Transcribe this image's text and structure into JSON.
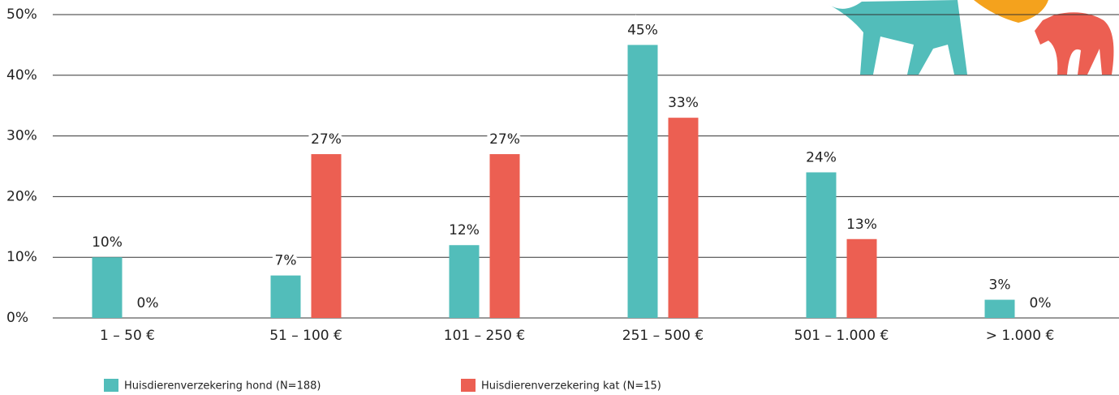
{
  "chart_data": {
    "type": "bar",
    "categories": [
      "1 – 50 €",
      "51 – 100 €",
      "101 – 250 €",
      "251 – 500 €",
      "501 – 1.000 €",
      "> 1.000 €"
    ],
    "series": [
      {
        "name": "Huisdierenverzekering hond (N=188)",
        "color": "#52bdba",
        "values": [
          10,
          7,
          12,
          45,
          24,
          3
        ],
        "value_labels": [
          "10%",
          "7%",
          "12%",
          "45%",
          "24%",
          "3%"
        ]
      },
      {
        "name": "Huisdierenverzekering kat (N=15)",
        "color": "#ec5f52",
        "values": [
          0,
          27,
          27,
          33,
          13,
          0
        ],
        "value_labels": [
          "0%",
          "27%",
          "27%",
          "33%",
          "13%",
          "0%"
        ]
      }
    ],
    "ylim": [
      0,
      50
    ],
    "yticks": [
      {
        "value": 0,
        "label": "0%"
      },
      {
        "value": 10,
        "label": "10%"
      },
      {
        "value": 20,
        "label": "20%"
      },
      {
        "value": 30,
        "label": "30%"
      },
      {
        "value": 40,
        "label": "40%"
      },
      {
        "value": 50,
        "label": "50%"
      }
    ],
    "grid": true
  }
}
